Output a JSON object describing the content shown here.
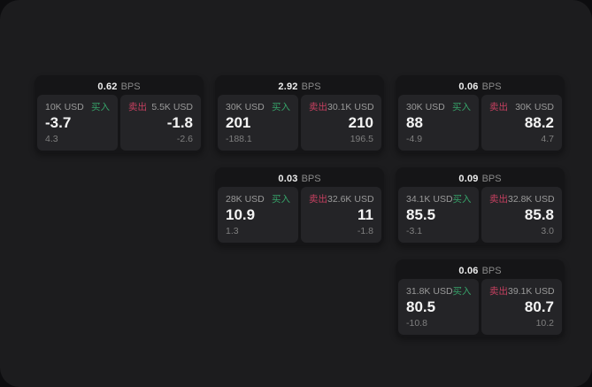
{
  "labels": {
    "buy": "买入",
    "sell": "卖出",
    "bps_unit": "BPS"
  },
  "colors": {
    "buy": "#36a269",
    "sell": "#c64060",
    "panel_bg": "#1c1c1e",
    "card_bg": "#151517",
    "tile_bg": "#242427"
  },
  "cards": [
    {
      "bps": "0.62",
      "buy": {
        "size": "10K USD",
        "main": "-3.7",
        "sub": "4.3"
      },
      "sell": {
        "size": "5.5K USD",
        "main": "-1.8",
        "sub": "-2.6"
      }
    },
    {
      "bps": "2.92",
      "buy": {
        "size": "30K USD",
        "main": "201",
        "sub": "-188.1"
      },
      "sell": {
        "size": "30.1K USD",
        "main": "210",
        "sub": "196.5"
      }
    },
    {
      "bps": "0.06",
      "buy": {
        "size": "30K USD",
        "main": "88",
        "sub": "-4.9"
      },
      "sell": {
        "size": "30K USD",
        "main": "88.2",
        "sub": "4.7"
      }
    },
    {
      "bps": "0.03",
      "buy": {
        "size": "28K USD",
        "main": "10.9",
        "sub": "1.3"
      },
      "sell": {
        "size": "32.6K USD",
        "main": "11",
        "sub": "-1.8"
      }
    },
    {
      "bps": "0.09",
      "buy": {
        "size": "34.1K USD",
        "main": "85.5",
        "sub": "-3.1"
      },
      "sell": {
        "size": "32.8K USD",
        "main": "85.8",
        "sub": "3.0"
      }
    },
    {
      "bps": "0.06",
      "buy": {
        "size": "31.8K USD",
        "main": "80.5",
        "sub": "-10.8"
      },
      "sell": {
        "size": "39.1K USD",
        "main": "80.7",
        "sub": "10.2"
      }
    }
  ]
}
